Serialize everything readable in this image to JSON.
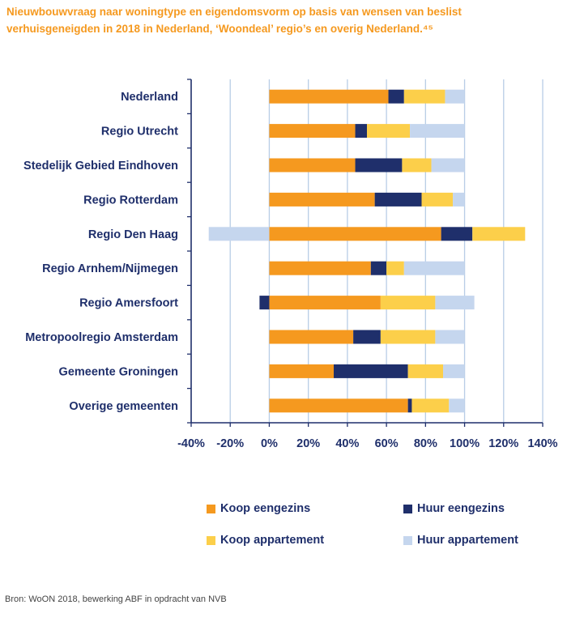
{
  "header": {
    "title": "Nieuwbouwvraag naar woningtype en eigendomsvorm op basis van wensen van beslist verhuisgeneigden in 2018 in Nederland, ‘Woondeal’ regio’s en overig Nederland.⁴⁵"
  },
  "colors": {
    "koop_eengezins": "#f5991f",
    "huur_eengezins": "#1f2f6b",
    "koop_appartement": "#fccf4a",
    "huur_appartement": "#c5d6ee",
    "gridline": "#b8cde6",
    "axis": "#1f2f6b"
  },
  "chart_data": {
    "type": "bar",
    "orientation": "horizontal",
    "stacked": true,
    "title": "Nieuwbouwvraag naar woningtype en eigendomsvorm op basis van wensen van beslist verhuisgeneigden in 2018 in Nederland, ‘Woondeal’ regio’s en overig Nederland.",
    "xlabel": "",
    "ylabel": "",
    "xlim": [
      -0.4,
      1.4
    ],
    "xticks": [
      "-40%",
      "-20%",
      "0%",
      "20%",
      "40%",
      "60%",
      "80%",
      "100%",
      "120%",
      "140%"
    ],
    "grid": true,
    "legend_position": "bottom",
    "categories": [
      "Nederland",
      "Regio Utrecht",
      "Stedelijk Gebied Eindhoven",
      "Regio Rotterdam",
      "Regio Den Haag",
      "Regio Arnhem/Nijmegen",
      "Regio Amersfoort",
      "Metropoolregio Amsterdam",
      "Gemeente Groningen",
      "Overige gemeenten"
    ],
    "series": [
      {
        "name": "Koop eengezins",
        "values": [
          0.61,
          0.44,
          0.44,
          0.54,
          0.88,
          0.52,
          0.57,
          0.43,
          0.33,
          0.71
        ]
      },
      {
        "name": "Huur eengezins",
        "values": [
          0.08,
          0.06,
          0.24,
          0.24,
          0.16,
          0.08,
          -0.05,
          0.14,
          0.38,
          0.02
        ]
      },
      {
        "name": "Koop appartement",
        "values": [
          0.21,
          0.22,
          0.15,
          0.16,
          0.27,
          0.09,
          0.28,
          0.28,
          0.18,
          0.19
        ]
      },
      {
        "name": "Huur appartement",
        "values": [
          0.1,
          0.28,
          0.17,
          0.06,
          -0.31,
          0.31,
          0.2,
          0.15,
          0.11,
          0.08
        ]
      }
    ]
  },
  "legend": {
    "items": [
      {
        "label": "Koop eengezins"
      },
      {
        "label": "Huur eengezins"
      },
      {
        "label": "Koop appartement"
      },
      {
        "label": "Huur appartement"
      }
    ]
  },
  "footer": {
    "source": "Bron: WoON 2018, bewerking ABF in opdracht van NVB"
  }
}
